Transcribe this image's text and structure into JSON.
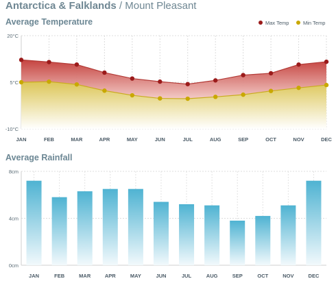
{
  "header": {
    "region": "Antarctica & Falklands",
    "separator": " / ",
    "place": "Mount Pleasant"
  },
  "colors": {
    "max_temp": "#9b1b1b",
    "min_temp": "#c9a800",
    "rain_bar": "#4fb3d2"
  },
  "chart_data": [
    {
      "type": "area",
      "title": "Average Temperature",
      "x": [
        "JAN",
        "FEB",
        "MAR",
        "APR",
        "MAY",
        "JUN",
        "JUL",
        "AUG",
        "SEP",
        "OCT",
        "NOV",
        "DEC"
      ],
      "yticks": [
        "20°C",
        "5°C",
        "-10°C"
      ],
      "ylim": [
        -10,
        20
      ],
      "legend": "top-right",
      "grid": true,
      "series": [
        {
          "name": "Max Temp",
          "values": [
            12.2,
            11.5,
            10.7,
            8.1,
            6.2,
            5.2,
            4.4,
            5.6,
            7.3,
            7.9,
            10.7,
            11.6
          ]
        },
        {
          "name": "Min Temp",
          "values": [
            5.0,
            5.2,
            4.3,
            2.3,
            0.8,
            -0.2,
            -0.3,
            0.3,
            1.0,
            2.2,
            3.2,
            4.1
          ]
        }
      ]
    },
    {
      "type": "bar",
      "title": "Average Rainfall",
      "categories": [
        "JAN",
        "FEB",
        "MAR",
        "APR",
        "MAY",
        "JUN",
        "JUL",
        "AUG",
        "SEP",
        "OCT",
        "NOV",
        "DEC"
      ],
      "yticks": [
        "8cm",
        "4cm",
        "0cm"
      ],
      "ylim": [
        0,
        8
      ],
      "grid": true,
      "values": [
        7.2,
        5.8,
        6.3,
        6.5,
        6.5,
        5.4,
        5.2,
        5.1,
        3.8,
        4.2,
        5.1,
        7.2
      ]
    }
  ]
}
